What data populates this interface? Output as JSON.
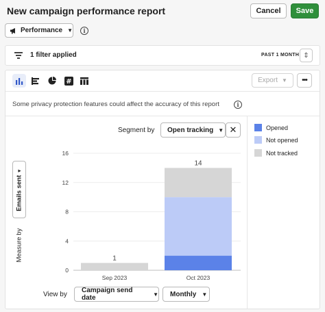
{
  "header": {
    "title": "New campaign performance report",
    "cancel_label": "Cancel",
    "save_label": "Save"
  },
  "report_selector": {
    "label": "Performance",
    "icon": "megaphone-icon"
  },
  "filter_bar": {
    "text": "1 filter applied",
    "range": "PAST 1 MONTH"
  },
  "toolbar": {
    "icons": [
      "bar-chart-icon",
      "horizontal-bar-icon",
      "pie-chart-icon",
      "number-icon",
      "table-icon"
    ],
    "export_label": "Export",
    "more_label": "•••"
  },
  "privacy_note": "Some privacy protection features could affect the accuracy of this report",
  "segment": {
    "label": "Segment by",
    "value": "Open tracking"
  },
  "measure": {
    "value": "Emails sent",
    "label": "Measure by"
  },
  "view": {
    "label": "View by",
    "value": "Campaign send date",
    "interval": "Monthly"
  },
  "colors": {
    "opened": "#5b82e8",
    "not_opened": "#bccbf7",
    "not_tracked": "#d6d6d6",
    "save": "#2f8f3b"
  },
  "chart_data": {
    "type": "bar",
    "stacked": true,
    "categories": [
      "Sep 2023",
      "Oct 2023"
    ],
    "series": [
      {
        "name": "Opened",
        "values": [
          0,
          2
        ]
      },
      {
        "name": "Not opened",
        "values": [
          0,
          8
        ]
      },
      {
        "name": "Not tracked",
        "values": [
          1,
          4
        ]
      }
    ],
    "totals": [
      "1",
      "14"
    ],
    "yticks": [
      0,
      4,
      8,
      12,
      16
    ],
    "ylim": [
      0,
      16
    ],
    "legend_position": "right",
    "grid": true
  }
}
